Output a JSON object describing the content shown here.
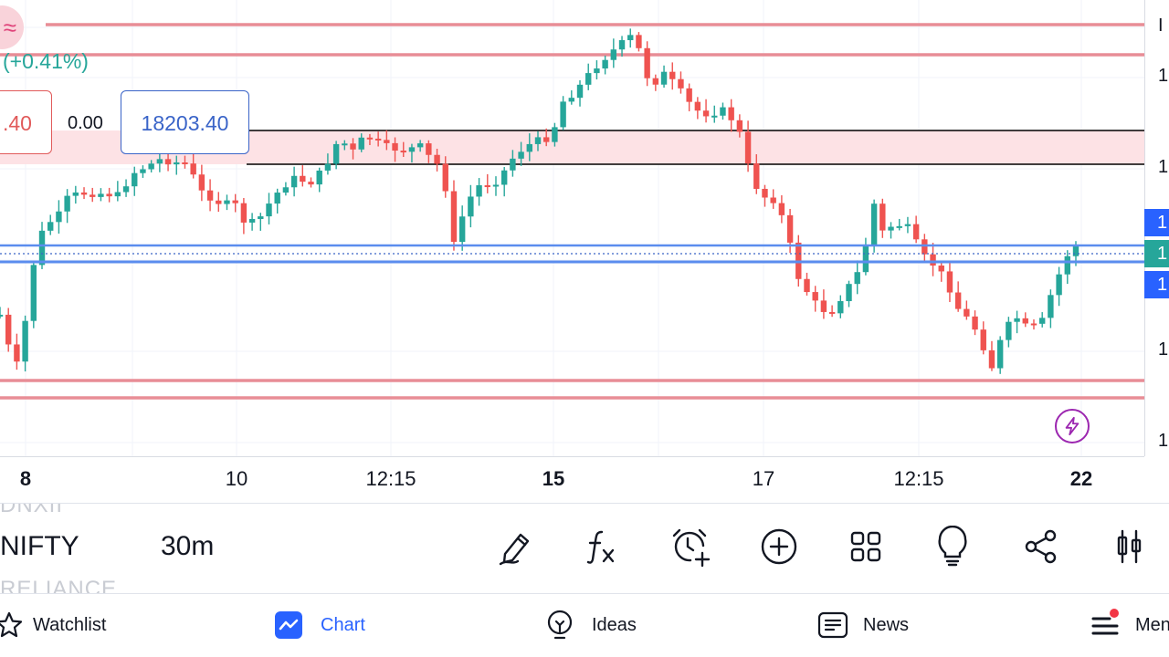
{
  "chart": {
    "change_text": "(+0.41%)",
    "sell_price": ".40",
    "spread": "0.00",
    "buy_price": "18203.40",
    "price_scale_labels": [
      "I",
      "1",
      "1",
      "1",
      "1"
    ],
    "price_tags": [
      "1",
      "1",
      "1"
    ],
    "colors": {
      "up": "#26a69a",
      "down": "#ef5350",
      "support_line": "#e88d96",
      "blue_line": "#5b8dee",
      "zone": "#fde2e5"
    }
  },
  "time_axis": [
    {
      "label": "8",
      "bold": true
    },
    {
      "label": "10",
      "bold": false
    },
    {
      "label": "12:15",
      "bold": false
    },
    {
      "label": "15",
      "bold": true
    },
    {
      "label": "17",
      "bold": false
    },
    {
      "label": "12:15",
      "bold": false
    },
    {
      "label": "22",
      "bold": true
    }
  ],
  "toolbar": {
    "ghost_top": "DNXII",
    "symbol": "NIFTY",
    "interval": "30m",
    "ghost_bottom": "RELIANCE",
    "icons": [
      "pen-icon",
      "fx-icon",
      "alarm-add-icon",
      "plus-circle-icon",
      "grid-icon",
      "lightbulb-icon",
      "share-icon",
      "candles-icon"
    ]
  },
  "nav": {
    "items": [
      {
        "label": "Watchlist",
        "icon": "star-icon",
        "active": false
      },
      {
        "label": "Chart",
        "icon": "chart-icon",
        "active": true
      },
      {
        "label": "Ideas",
        "icon": "lightbulb-icon",
        "active": false
      },
      {
        "label": "News",
        "icon": "news-icon",
        "active": false
      },
      {
        "label": "Men",
        "icon": "menu-icon",
        "active": false
      }
    ]
  }
}
